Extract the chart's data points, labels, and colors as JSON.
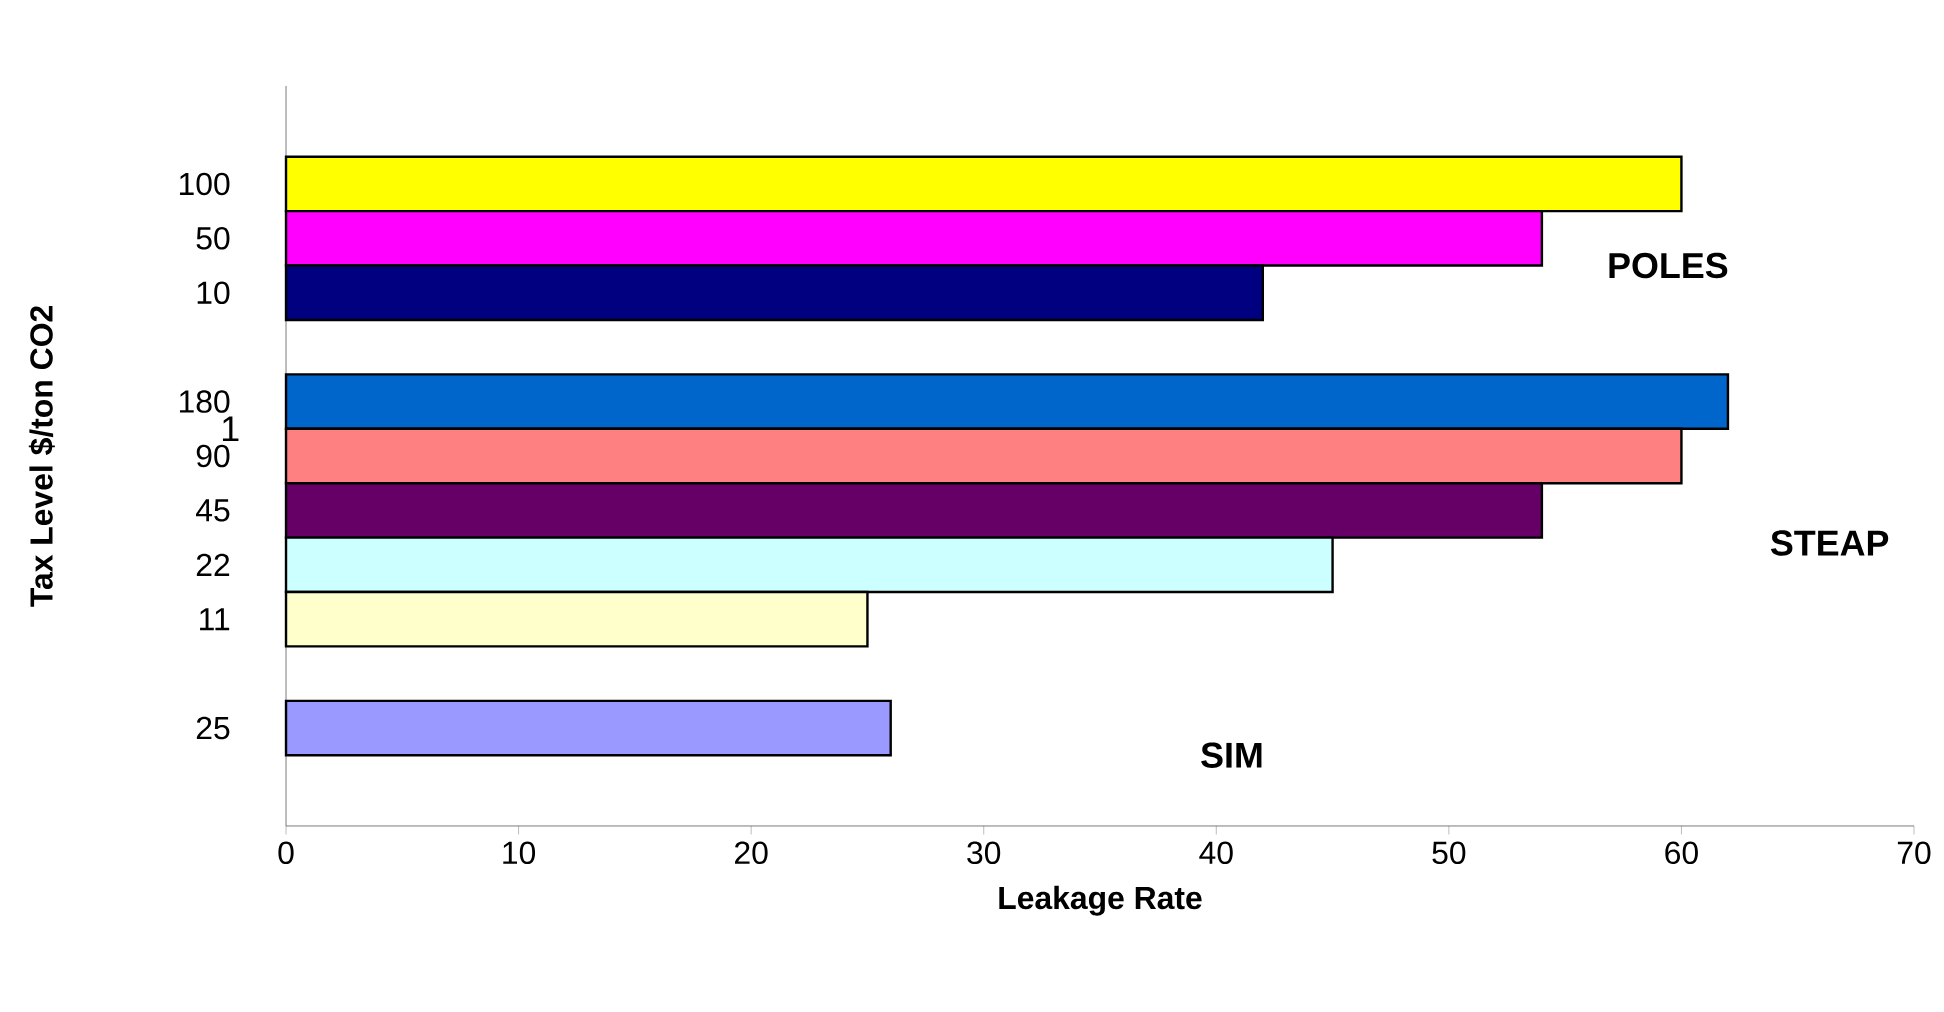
{
  "chart_data": {
    "type": "bar",
    "orientation": "horizontal",
    "xlabel": "Leakage Rate",
    "ylabel": "Tax Level $/ton CO2",
    "categories": [
      "100",
      "50",
      "10",
      null,
      "180",
      "90",
      "45",
      "22",
      "11",
      null,
      "25"
    ],
    "values": [
      60,
      54,
      42,
      null,
      62,
      60,
      54,
      45,
      25,
      null,
      26
    ],
    "colors": [
      "#ffff00",
      "#ff00ff",
      "#000080",
      null,
      "#0066cc",
      "#ff8080",
      "#660066",
      "#ccffff",
      "#ffffcc",
      null,
      "#9999ff"
    ],
    "xlim": [
      0,
      70
    ],
    "xticks": [
      0,
      10,
      20,
      30,
      40,
      50,
      60,
      70
    ],
    "annotations": [
      "POLES",
      "STEAP",
      "SIM",
      "1"
    ],
    "grid": false
  }
}
